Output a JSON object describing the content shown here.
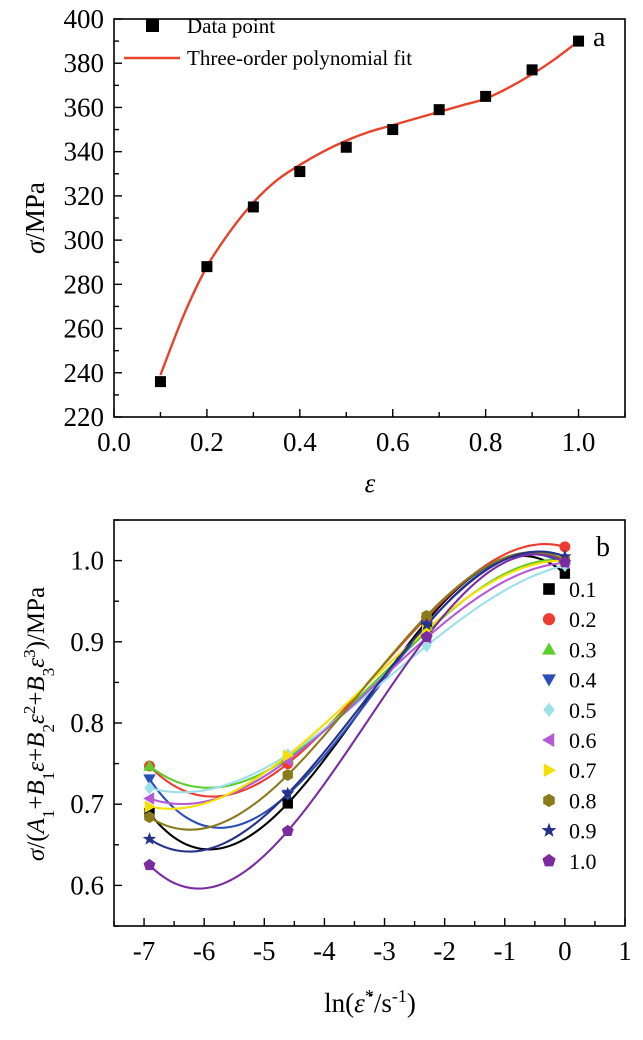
{
  "chart_data": [
    {
      "type": "scatter",
      "panel_label": "a",
      "xlabel": "ε",
      "ylabel": "σ/MPa",
      "xlim": [
        0.0,
        1.1
      ],
      "ylim": [
        220,
        400
      ],
      "x_ticks": [
        "0.0",
        "0.2",
        "0.4",
        "0.6",
        "0.8",
        "1.0"
      ],
      "y_ticks": [
        "220",
        "240",
        "260",
        "280",
        "300",
        "320",
        "340",
        "360",
        "380",
        "400"
      ],
      "legend": {
        "placement": "top-left",
        "items": [
          "Data point",
          "Three-order polynomial fit"
        ]
      },
      "series": [
        {
          "name": "Data point",
          "kind": "scatter",
          "marker": "square",
          "color": "#000000",
          "x": [
            0.1,
            0.2,
            0.3,
            0.4,
            0.5,
            0.6,
            0.7,
            0.8,
            0.9,
            1.0
          ],
          "y": [
            236,
            288,
            315,
            331,
            342,
            350,
            359,
            365,
            377,
            390
          ]
        },
        {
          "name": "Three-order polynomial fit",
          "kind": "line",
          "color": "#e8432a",
          "x": [
            0.1,
            0.15,
            0.2,
            0.25,
            0.3,
            0.35,
            0.4,
            0.45,
            0.5,
            0.55,
            0.6,
            0.65,
            0.7,
            0.75,
            0.8,
            0.85,
            0.9,
            0.95,
            1.0
          ],
          "y": [
            239,
            266,
            288,
            304,
            317,
            327,
            334,
            340,
            345,
            349,
            352,
            355,
            358,
            361,
            364,
            369,
            375,
            382,
            390
          ]
        }
      ]
    },
    {
      "type": "scatter",
      "panel_label": "b",
      "xlabel": "ln(ε̇*/s-1)",
      "ylabel": "σ/(A1+B1ε+B2ε2+B3ε3)/MPa",
      "xlim": [
        -7.5,
        1
      ],
      "ylim": [
        0.55,
        1.05
      ],
      "x_ticks": [
        "-7",
        "-6",
        "-5",
        "-4",
        "-3",
        "-2",
        "-1",
        "0",
        "1"
      ],
      "y_ticks": [
        "0.6",
        "0.7",
        "0.8",
        "0.9",
        "1.0"
      ],
      "legend": {
        "placement": "right"
      },
      "x": [
        -6.91,
        -4.61,
        -2.3,
        0.0
      ],
      "series": [
        {
          "name": "0.1",
          "marker": "square",
          "color": "#000000",
          "y": [
            0.689,
            0.701,
            0.925,
            0.984
          ]
        },
        {
          "name": "0.2",
          "marker": "circle",
          "color": "#ee3b2f",
          "y": [
            0.747,
            0.75,
            0.93,
            1.017
          ]
        },
        {
          "name": "0.3",
          "marker": "triangle-up",
          "color": "#5ccd2a",
          "y": [
            0.747,
            0.757,
            0.912,
            1.001
          ]
        },
        {
          "name": "0.4",
          "marker": "triangle-down",
          "color": "#2b4fb8",
          "y": [
            0.731,
            0.712,
            0.92,
            0.995
          ]
        },
        {
          "name": "0.5",
          "marker": "diamond",
          "color": "#9ee0ea",
          "y": [
            0.72,
            0.761,
            0.895,
            0.994
          ]
        },
        {
          "name": "0.6",
          "marker": "triangle-left",
          "color": "#b45ad6",
          "y": [
            0.707,
            0.754,
            0.905,
            0.997
          ]
        },
        {
          "name": "0.7",
          "marker": "triangle-right",
          "color": "#f5e000",
          "y": [
            0.697,
            0.76,
            0.915,
            1.0
          ]
        },
        {
          "name": "0.8",
          "marker": "hexagon",
          "color": "#8a7b1a",
          "y": [
            0.684,
            0.736,
            0.932,
            1.001
          ]
        },
        {
          "name": "0.9",
          "marker": "star",
          "color": "#27308a",
          "y": [
            0.657,
            0.713,
            0.921,
            1.005
          ]
        },
        {
          "name": "1.0",
          "marker": "pentagon",
          "color": "#7a2ca0",
          "y": [
            0.625,
            0.667,
            0.906,
            0.998
          ]
        }
      ]
    }
  ]
}
